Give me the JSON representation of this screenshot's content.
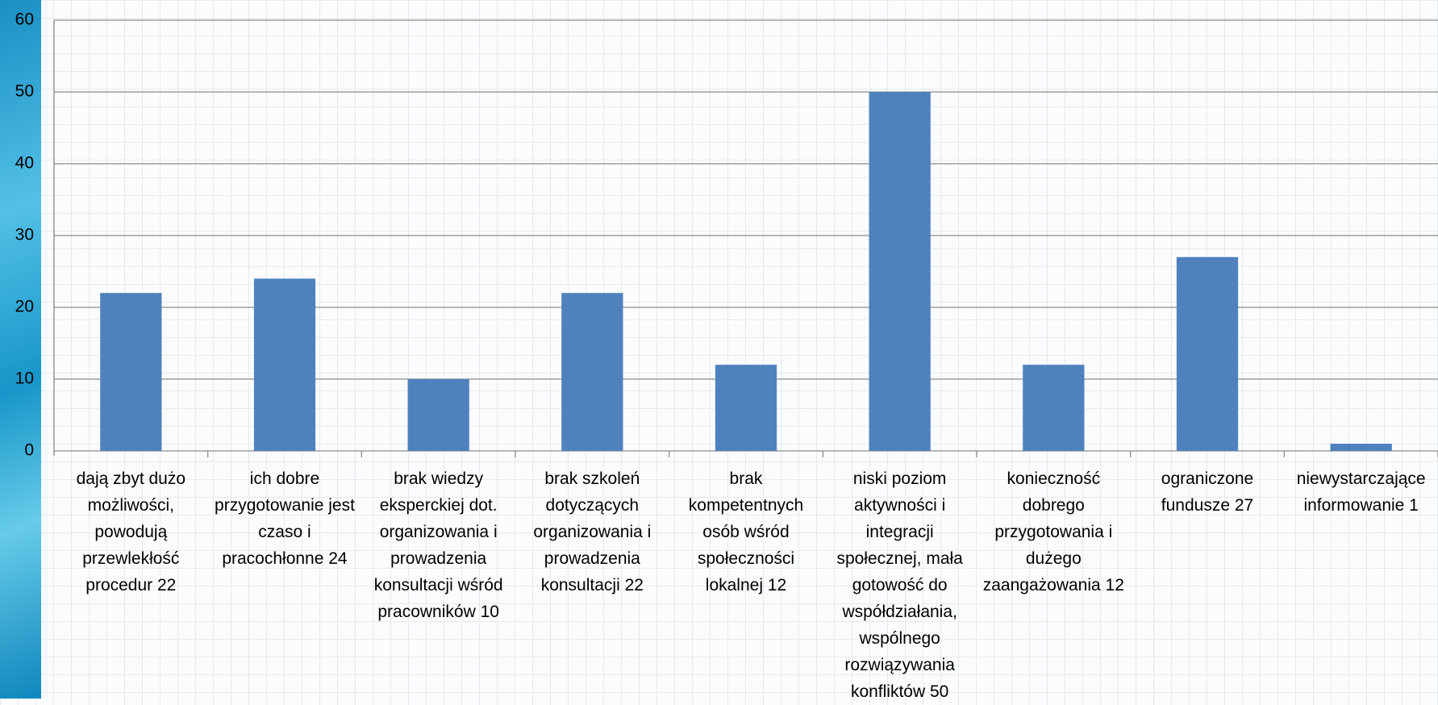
{
  "chart_data": {
    "type": "bar",
    "categories": [
      "dają zbyt dużo możliwości, powodują przewlekłość procedur 22",
      "ich dobre przygotowanie jest czaso i pracochłonne 24",
      "brak wiedzy eksperckiej dot. organizowania i prowadzenia konsultacji wśród pracowników 10",
      "brak szkoleń dotyczących organizowania i prowadzenia konsultacji 22",
      "brak kompetentnych osób wśród społeczności lokalnej 12",
      "niski poziom aktywności i integracji społecznej, mała gotowość do współdziałania, wspólnego rozwiązywania konfliktów 50",
      "konieczność dobrego przygotowania i dużego zaangażowania 12",
      "ograniczone fundusze 27",
      "niewystarczające informowanie 1"
    ],
    "values": [
      22,
      24,
      10,
      22,
      12,
      50,
      12,
      27,
      1
    ],
    "color": "#4f81bd",
    "ylim": [
      0,
      60
    ],
    "yticks": [
      0,
      10,
      20,
      30,
      40,
      50,
      60
    ],
    "grid": true
  }
}
